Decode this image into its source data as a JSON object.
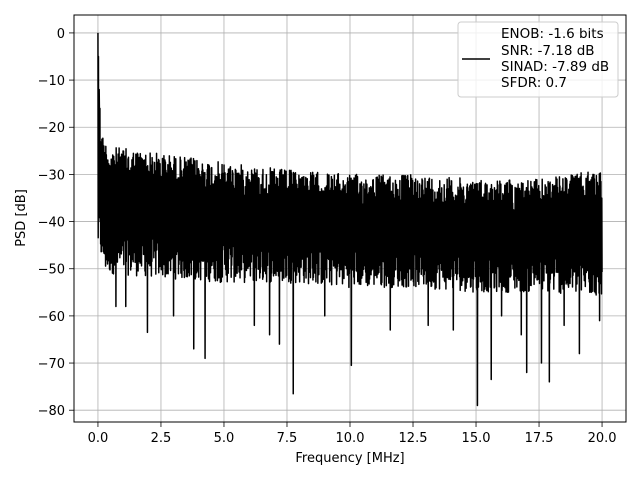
{
  "chart_data": {
    "type": "line",
    "title": "",
    "xlabel": "Frequency [MHz]",
    "ylabel": "PSD [dB]",
    "xlim": [
      -0.95,
      20.95
    ],
    "ylim": [
      -82.5,
      3.8
    ],
    "xticks": [
      0.0,
      2.5,
      5.0,
      7.5,
      10.0,
      12.5,
      15.0,
      17.5,
      20.0
    ],
    "xtick_labels": [
      "0.0",
      "2.5",
      "5.0",
      "7.5",
      "10.0",
      "12.5",
      "15.0",
      "17.5",
      "20.0"
    ],
    "yticks": [
      0,
      -10,
      -20,
      -30,
      -40,
      -50,
      -60,
      -70,
      -80
    ],
    "ytick_labels": [
      "0",
      "−10",
      "−20",
      "−30",
      "−40",
      "−50",
      "−60",
      "−70",
      "−80"
    ],
    "grid": true,
    "legend": {
      "placement": "top-right",
      "entries": [
        "ENOB: -1.6 bits",
        "SNR: -7.18 dB",
        "SINAD: -7.89 dB",
        "SFDR: 0.7"
      ]
    },
    "series": [
      {
        "color": "#000000",
        "x_range": [
          0,
          20
        ],
        "n_points": 2048,
        "peak": {
          "x": 0.0,
          "y": 0.0
        },
        "upper_envelope": [
          [
            0.0,
            0
          ],
          [
            0.05,
            -15
          ],
          [
            0.15,
            -21
          ],
          [
            0.4,
            -24
          ],
          [
            2.5,
            -25.5
          ],
          [
            5.0,
            -27.5
          ],
          [
            7.5,
            -29
          ],
          [
            10.0,
            -30
          ],
          [
            12.5,
            -30
          ],
          [
            15.0,
            -31
          ],
          [
            17.5,
            -31
          ],
          [
            20.0,
            -29
          ]
        ],
        "lower_envelope": [
          [
            0.0,
            -46
          ],
          [
            0.3,
            -51
          ],
          [
            2.5,
            -52
          ],
          [
            5.0,
            -53
          ],
          [
            7.5,
            -53
          ],
          [
            10.0,
            -54
          ],
          [
            12.5,
            -54
          ],
          [
            15.0,
            -55
          ],
          [
            17.5,
            -55
          ],
          [
            20.0,
            -56
          ]
        ],
        "deep_dips": [
          [
            0.7,
            -58
          ],
          [
            1.1,
            -58
          ],
          [
            1.95,
            -63.5
          ],
          [
            3.0,
            -60
          ],
          [
            3.8,
            -67
          ],
          [
            4.25,
            -69
          ],
          [
            6.2,
            -62
          ],
          [
            6.8,
            -64
          ],
          [
            7.2,
            -66
          ],
          [
            7.75,
            -76.5
          ],
          [
            9.0,
            -60
          ],
          [
            10.05,
            -70.5
          ],
          [
            11.6,
            -63
          ],
          [
            13.1,
            -62
          ],
          [
            14.1,
            -63
          ],
          [
            15.05,
            -79
          ],
          [
            15.6,
            -73.5
          ],
          [
            16.0,
            -60
          ],
          [
            16.8,
            -64
          ],
          [
            17.0,
            -72
          ],
          [
            17.6,
            -70
          ],
          [
            17.9,
            -74
          ],
          [
            18.5,
            -62
          ],
          [
            19.1,
            -68
          ],
          [
            19.9,
            -61
          ]
        ],
        "spikes": [
          [
            0.02,
            -5
          ],
          [
            0.05,
            -12
          ],
          [
            0.08,
            -16
          ]
        ]
      }
    ]
  }
}
